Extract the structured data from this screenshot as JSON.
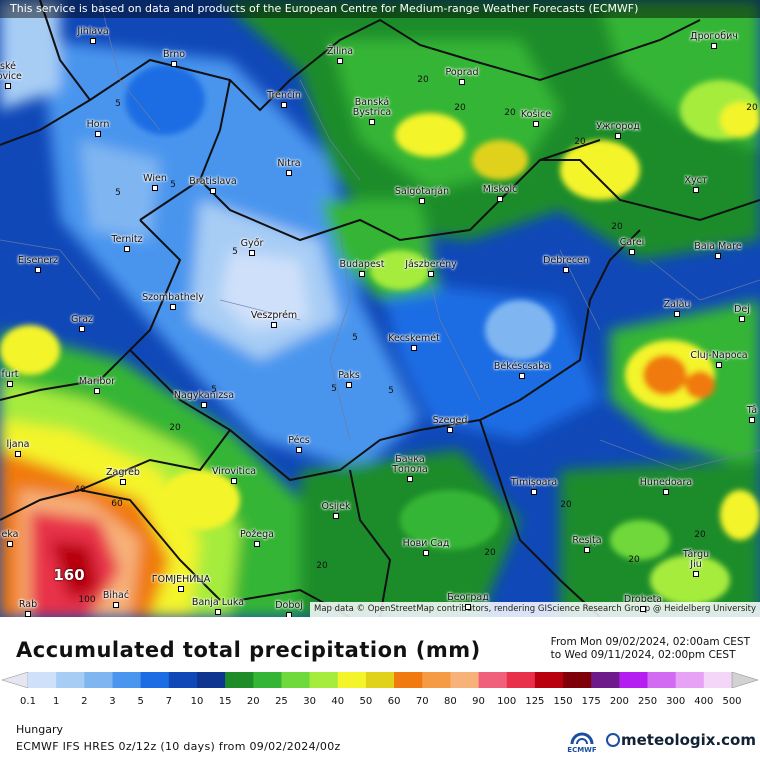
{
  "header": {
    "disclaimer": "This service is based on data and products of the European Centre for Medium-range Weather Forecasts (ECMWF)",
    "attribution": "Map data © OpenStreetMap contributors, rendering GIScience Research Group @ Heidelberg University"
  },
  "map": {
    "cities": [
      {
        "id": "jihlava",
        "name": "Jihlava"
      },
      {
        "id": "brno",
        "name": "Brno"
      },
      {
        "id": "zilina",
        "name": "Žilina"
      },
      {
        "id": "drogobych",
        "name": "Дрогобич"
      },
      {
        "id": "budejovice",
        "name": "ské\njovice"
      },
      {
        "id": "poprad",
        "name": "Poprad"
      },
      {
        "id": "trencin",
        "name": "Trenčín"
      },
      {
        "id": "banska",
        "name": "Banská\nBystrica"
      },
      {
        "id": "horn",
        "name": "Horn"
      },
      {
        "id": "kosice",
        "name": "Košice"
      },
      {
        "id": "uzhgorod",
        "name": "Ужгород"
      },
      {
        "id": "nitra",
        "name": "Nitra"
      },
      {
        "id": "wien",
        "name": "Wien"
      },
      {
        "id": "bratislava",
        "name": "Bratislava"
      },
      {
        "id": "salgotarjan",
        "name": "Salgótarján"
      },
      {
        "id": "miskolc",
        "name": "Miskolc"
      },
      {
        "id": "khust",
        "name": "Хуст"
      },
      {
        "id": "ternitz",
        "name": "Ternitz"
      },
      {
        "id": "gyor",
        "name": "Győr"
      },
      {
        "id": "carei",
        "name": "Carei"
      },
      {
        "id": "baiamare",
        "name": "Baia Mare"
      },
      {
        "id": "eisenerz",
        "name": "Eisenerz"
      },
      {
        "id": "budapest",
        "name": "Budapest"
      },
      {
        "id": "jaszbereny",
        "name": "Jászberény"
      },
      {
        "id": "debrecen",
        "name": "Debrecen"
      },
      {
        "id": "szombathely",
        "name": "Szombathely"
      },
      {
        "id": "zalau",
        "name": "Zalău"
      },
      {
        "id": "dej",
        "name": "Dej"
      },
      {
        "id": "graz",
        "name": "Graz"
      },
      {
        "id": "veszprem",
        "name": "Veszprém"
      },
      {
        "id": "kecskemet",
        "name": "Kecskemét"
      },
      {
        "id": "clujnapoca",
        "name": "Cluj-Napoca"
      },
      {
        "id": "bekescsaba",
        "name": "Békéscsaba"
      },
      {
        "id": "furt",
        "name": "furt"
      },
      {
        "id": "maribor",
        "name": "Maribor"
      },
      {
        "id": "paks",
        "name": "Paks"
      },
      {
        "id": "nagykanizsa",
        "name": "Nagykanizsa"
      },
      {
        "id": "szeged",
        "name": "Szeged"
      },
      {
        "id": "ta",
        "name": "Tâ"
      },
      {
        "id": "ljubljana",
        "name": "ljana"
      },
      {
        "id": "pecs",
        "name": "Pécs"
      },
      {
        "id": "backatopola",
        "name": "Бачка\nТопола"
      },
      {
        "id": "zagreb",
        "name": "Zagreb"
      },
      {
        "id": "virovitica",
        "name": "Virovitica"
      },
      {
        "id": "timisoara",
        "name": "Timișoara"
      },
      {
        "id": "hunedoara",
        "name": "Hunedoara"
      },
      {
        "id": "osijek",
        "name": "Osijek"
      },
      {
        "id": "eka",
        "name": "eka"
      },
      {
        "id": "pozega",
        "name": "Požega"
      },
      {
        "id": "noviSad",
        "name": "Нови Сад"
      },
      {
        "id": "resita",
        "name": "Reșița"
      },
      {
        "id": "targujiu",
        "name": "Târgu\nJiu"
      },
      {
        "id": "gomjenica",
        "name": "ГОМЈЕНИЦА"
      },
      {
        "id": "bihac",
        "name": "Bihać"
      },
      {
        "id": "rab",
        "name": "Rab"
      },
      {
        "id": "banjaluka",
        "name": "Banja Luka"
      },
      {
        "id": "doboj",
        "name": "Doboj"
      },
      {
        "id": "beograd",
        "name": "Београд"
      },
      {
        "id": "drobeta",
        "name": "Drobeta"
      }
    ],
    "contour_labels": [
      "5",
      "5",
      "5",
      "5",
      "5",
      "5",
      "5",
      "5",
      "20",
      "20",
      "20",
      "20",
      "20",
      "20",
      "20",
      "20",
      "20",
      "20",
      "20",
      "20",
      "40",
      "60",
      "100"
    ],
    "max_label": "160"
  },
  "footer": {
    "title": "Accumulated total precipitation (mm)",
    "period_from": "From Mon 09/02/2024, 02:00am CEST",
    "period_to": "to Wed 09/11/2024, 02:00pm CEST",
    "region": "Hungary",
    "model": "ECMWF IFS HRES 0z/12z (10 days) from 09/02/2024/00z",
    "ecmwf": "ECMWF",
    "brand": "meteologix.com"
  },
  "legend": {
    "levels": [
      "0.1",
      "1",
      "2",
      "3",
      "5",
      "7",
      "10",
      "15",
      "20",
      "25",
      "30",
      "40",
      "50",
      "60",
      "70",
      "80",
      "90",
      "100",
      "125",
      "150",
      "175",
      "200",
      "250",
      "300",
      "400",
      "500"
    ],
    "colors": [
      "#e6e6f2",
      "#cfe0fa",
      "#a7cdf5",
      "#7fb6f2",
      "#4a95ee",
      "#1c6de4",
      "#1048b8",
      "#0e3590",
      "#1f8c2a",
      "#35b536",
      "#6fd83a",
      "#a6ec3e",
      "#f4f42a",
      "#e0d21a",
      "#f07a10",
      "#f59a45",
      "#f7b27a",
      "#f0607a",
      "#e8304a",
      "#b8000e",
      "#80000a",
      "#6e1a8a",
      "#b51ef0",
      "#d26af2",
      "#e8a2f5",
      "#f4d6f8",
      "#d2d2d2"
    ]
  }
}
